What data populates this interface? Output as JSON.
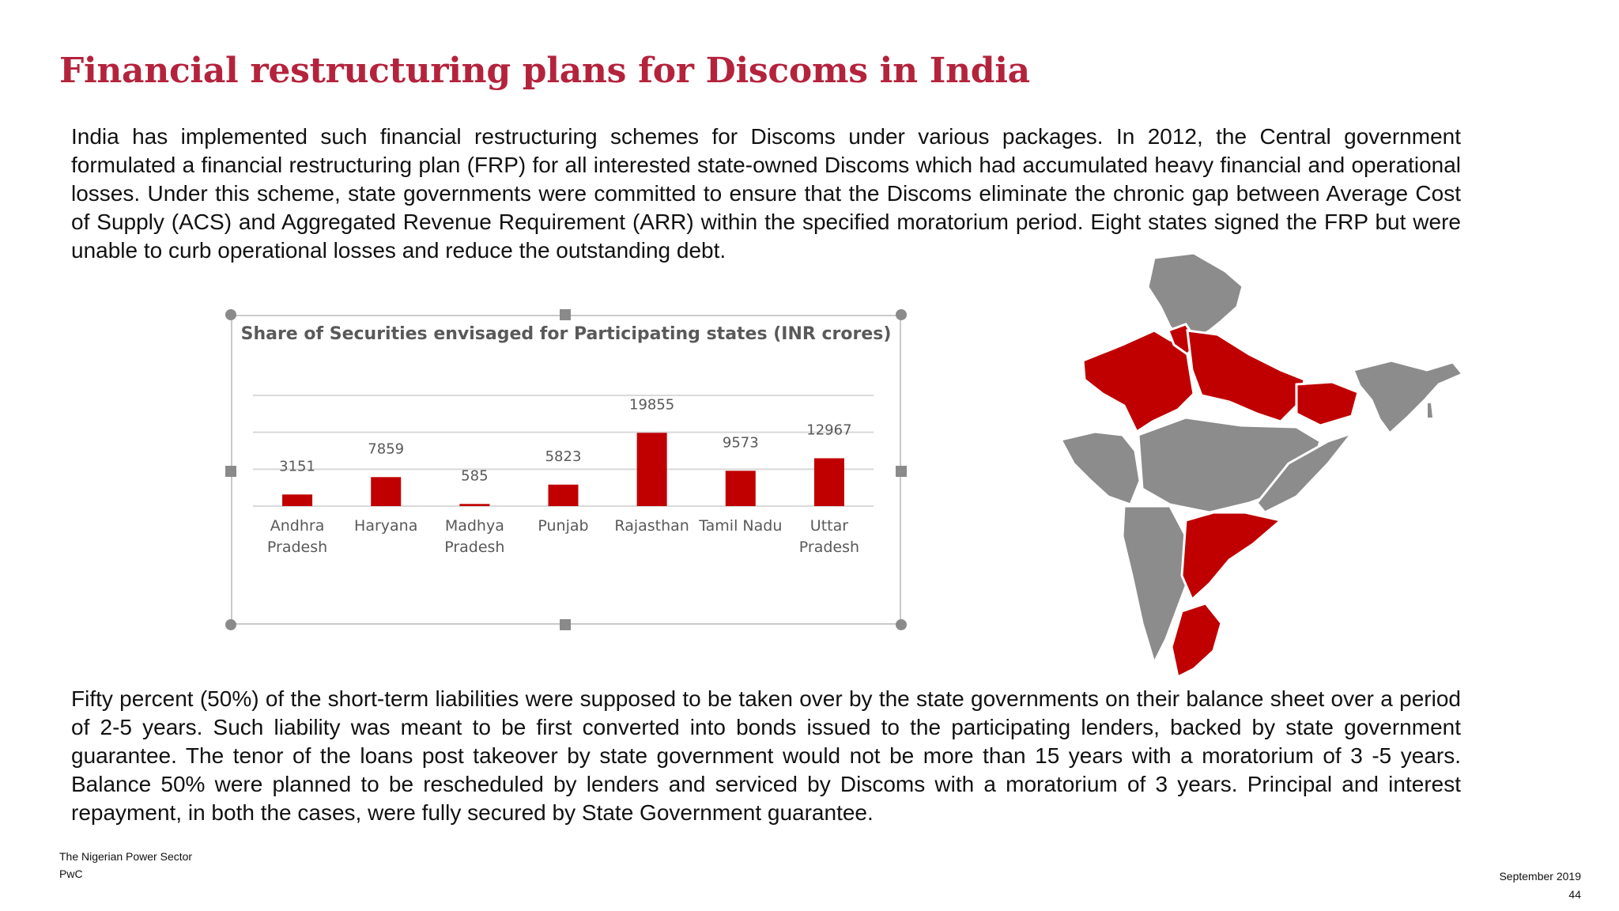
{
  "page": {
    "title": "Financial restructuring plans for Discoms in India",
    "paragraph_1": "India has implemented such financial restructuring schemes for Discoms under various packages. In 2012, the Central government formulated a financial restructuring plan (FRP) for all interested state-owned Discoms which had accumulated heavy financial and operational losses. Under this scheme, state governments were committed to ensure that the Discoms eliminate the chronic gap between Average Cost of Supply  (ACS) and Aggregated Revenue Requirement (ARR) within the specified moratorium period. Eight states signed the FRP but were unable to curb operational losses and reduce the outstanding debt.",
    "paragraph_2": "Fifty percent (50%) of the short-term liabilities were supposed to be taken over by the state governments on their balance sheet over a period of 2-5 years. Such liability was meant to be first converted into bonds issued to the participating lenders, backed by state government guarantee. The tenor of the loans post takeover by state government would not be more than 15 years with a moratorium of 3 -5 years. Balance 50% were planned to be rescheduled by lenders and serviced by Discoms with a moratorium of 3 years. Principal and interest repayment, in both the cases, were fully secured by State Government guarantee."
  },
  "footer": {
    "source_line": "The Nigerian Power Sector",
    "org": "PwC",
    "date": "September 2019",
    "page_number": "44"
  },
  "chart_data": {
    "type": "bar",
    "title": "Share of Securities envisaged for Participating states (INR crores)",
    "categories": [
      "Andhra Pradesh",
      "Haryana",
      "Madhya Pradesh",
      "Punjab",
      "Rajasthan",
      "Tamil Nadu",
      "Uttar Pradesh"
    ],
    "category_lines": [
      [
        "Andhra",
        "Pradesh"
      ],
      [
        "Haryana"
      ],
      [
        "Madhya",
        "Pradesh"
      ],
      [
        "Punjab"
      ],
      [
        "Rajasthan"
      ],
      [
        "Tamil Nadu"
      ],
      [
        "Uttar",
        "Pradesh"
      ]
    ],
    "values": [
      3151,
      7859,
      585,
      5823,
      19855,
      9573,
      12967
    ],
    "ylim": [
      0,
      30000
    ],
    "grid": true,
    "bar_color": "#c00000",
    "label_color": "#595959"
  },
  "map": {
    "highlight_color": "#c00000",
    "base_color": "#8c8c8c"
  }
}
